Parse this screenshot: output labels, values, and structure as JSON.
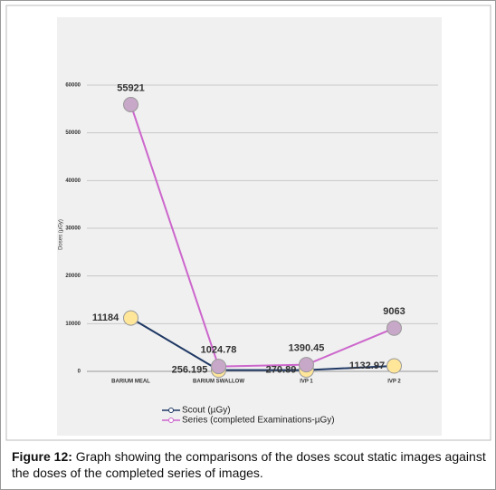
{
  "chart_data": {
    "type": "line",
    "y_label": "Doses (µGy)",
    "categories": [
      "BARIUM MEAL",
      "BARIUM SWALLOW",
      "IVP 1",
      "IVP 2"
    ],
    "series": [
      {
        "name": "Scout (µGy)",
        "color": "#1f3864",
        "marker_color": "#ffe699",
        "values": [
          11184,
          256.195,
          270.89,
          1132.97
        ]
      },
      {
        "name": "Series (completed Examinations-µGy)",
        "color": "#cc66cc",
        "marker_color": "#c8a8c8",
        "values": [
          55921,
          1024.78,
          1390.45,
          9063
        ]
      }
    ],
    "ylim": [
      0,
      60000
    ],
    "yticks": [
      0,
      10000,
      20000,
      30000,
      40000,
      50000,
      60000
    ],
    "grid": true
  },
  "caption": {
    "label": "Figure 12:",
    "text": "Graph showing the comparisons of the doses scout static images against the doses of the completed series of images."
  }
}
